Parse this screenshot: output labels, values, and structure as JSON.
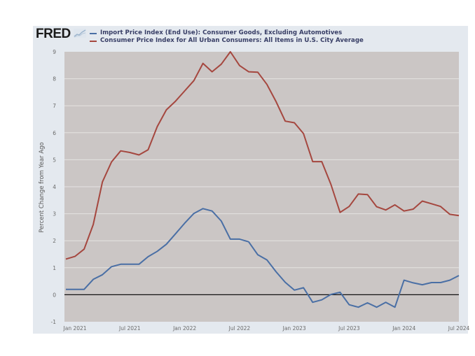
{
  "brand": {
    "logo_text": "FRED",
    "logo_icon": "fred-chart-icon"
  },
  "colors": {
    "series_1": "#4a6fa5",
    "series_2": "#a5473f",
    "plot_bg": "#cbc6c5",
    "panel_bg": "#e4e9ef",
    "gridline": "#e6e3e2",
    "zero_line": "#111111"
  },
  "chart_data": {
    "type": "line",
    "title": "",
    "xlabel": "",
    "ylabel": "Percent Change from Year Ago",
    "ylim": [
      -1,
      9
    ],
    "yticks": [
      -1,
      0,
      1,
      2,
      3,
      4,
      5,
      6,
      7,
      8,
      9
    ],
    "grid": true,
    "legend_position": "top-left",
    "zero_line": true,
    "x_range": [
      "2020-12",
      "2024-07"
    ],
    "xticks": [
      {
        "label": "Jan 2021",
        "date": "2021-01"
      },
      {
        "label": "Jul 2021",
        "date": "2021-07"
      },
      {
        "label": "Jan 2022",
        "date": "2022-01"
      },
      {
        "label": "Jul 2022",
        "date": "2022-07"
      },
      {
        "label": "Jan 2023",
        "date": "2023-01"
      },
      {
        "label": "Jul 2023",
        "date": "2023-07"
      },
      {
        "label": "Jan 2024",
        "date": "2024-01"
      },
      {
        "label": "Jul 2024",
        "date": "2024-07"
      }
    ],
    "x": [
      "2020-12",
      "2021-01",
      "2021-02",
      "2021-03",
      "2021-04",
      "2021-05",
      "2021-06",
      "2021-07",
      "2021-08",
      "2021-09",
      "2021-10",
      "2021-11",
      "2021-12",
      "2022-01",
      "2022-02",
      "2022-03",
      "2022-04",
      "2022-05",
      "2022-06",
      "2022-07",
      "2022-08",
      "2022-09",
      "2022-10",
      "2022-11",
      "2022-12",
      "2023-01",
      "2023-02",
      "2023-03",
      "2023-04",
      "2023-05",
      "2023-06",
      "2023-07",
      "2023-08",
      "2023-09",
      "2023-10",
      "2023-11",
      "2023-12",
      "2024-01",
      "2024-02",
      "2024-03",
      "2024-04",
      "2024-05",
      "2024-06",
      "2024-07"
    ],
    "series": [
      {
        "name": "Import Price Index (End Use): Consumer Goods, Excluding Automotives",
        "color": "#4a6fa5",
        "values": [
          0.2,
          0.2,
          0.2,
          0.57,
          0.74,
          1.04,
          1.13,
          1.13,
          1.13,
          1.41,
          1.61,
          1.87,
          2.26,
          2.65,
          3.01,
          3.19,
          3.1,
          2.73,
          2.06,
          2.06,
          1.96,
          1.48,
          1.29,
          0.85,
          0.46,
          0.17,
          0.26,
          -0.28,
          -0.19,
          0.01,
          0.09,
          -0.37,
          -0.46,
          -0.3,
          -0.46,
          -0.28,
          -0.46,
          0.54,
          0.44,
          0.37,
          0.45,
          0.45,
          0.54,
          0.71
        ]
      },
      {
        "name": "Consumer Price Index for All Urban Consumers: All Items in U.S. City Average",
        "color": "#a5473f",
        "values": [
          1.32,
          1.42,
          1.69,
          2.6,
          4.18,
          4.92,
          5.33,
          5.27,
          5.18,
          5.37,
          6.23,
          6.85,
          7.17,
          7.55,
          7.93,
          8.57,
          8.26,
          8.54,
          9.0,
          8.49,
          8.26,
          8.24,
          7.79,
          7.15,
          6.43,
          6.37,
          5.97,
          4.93,
          4.93,
          4.09,
          3.05,
          3.27,
          3.73,
          3.71,
          3.26,
          3.14,
          3.33,
          3.1,
          3.17,
          3.47,
          3.37,
          3.27,
          2.98,
          2.93
        ]
      }
    ]
  }
}
